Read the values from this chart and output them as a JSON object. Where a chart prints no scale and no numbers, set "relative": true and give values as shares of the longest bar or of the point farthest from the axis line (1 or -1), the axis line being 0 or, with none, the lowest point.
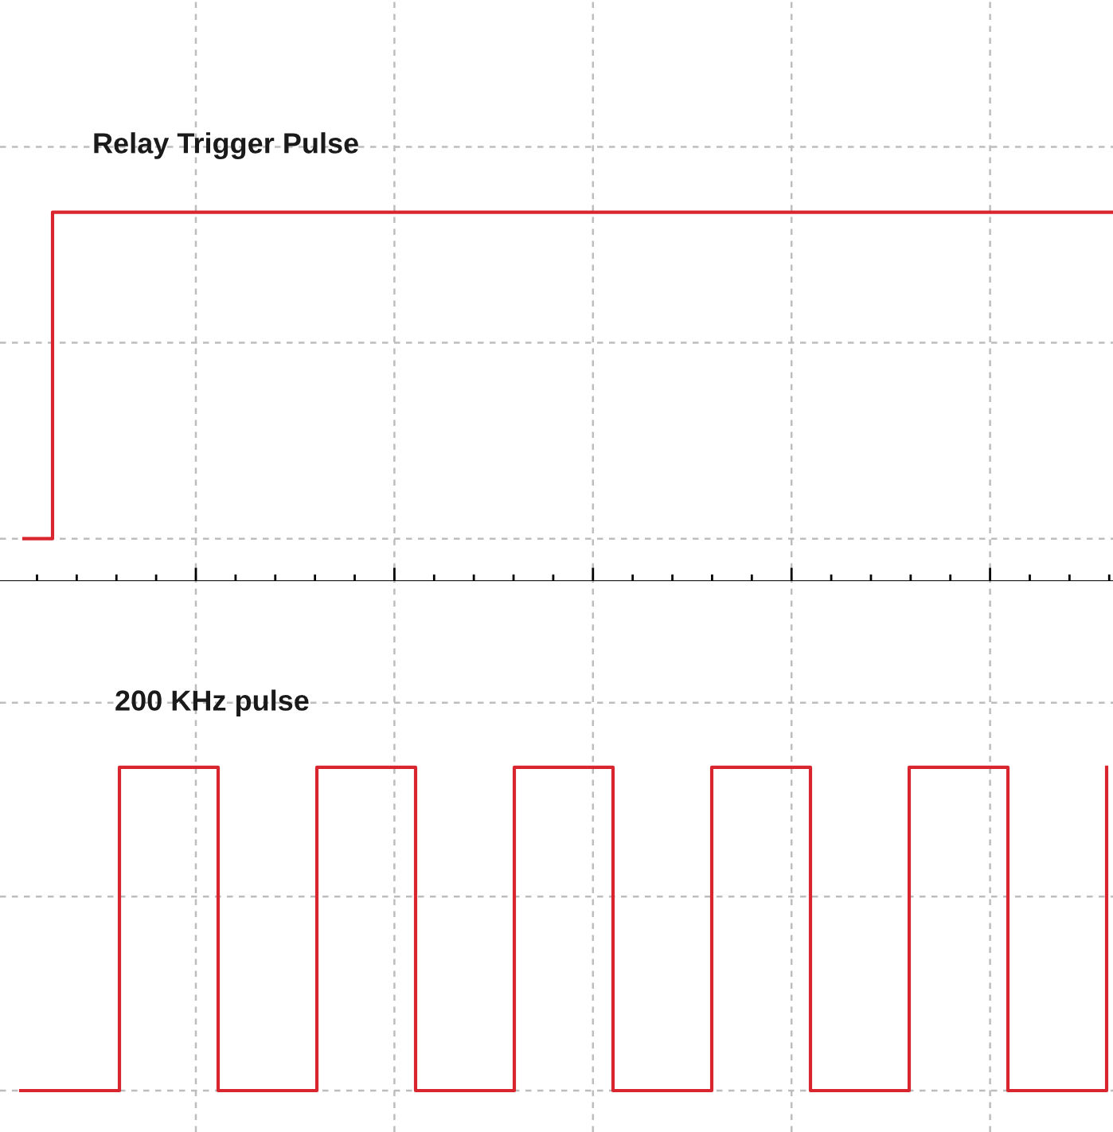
{
  "chart_data": [
    {
      "type": "step",
      "title": "Relay Trigger Pulse",
      "relative": true,
      "grid": true,
      "categories": [
        null,
        null,
        null,
        null,
        null,
        null,
        null,
        null,
        null,
        null,
        null,
        null,
        null,
        null,
        null,
        null,
        null,
        null,
        null,
        null,
        null,
        null,
        null,
        null,
        null,
        null,
        null,
        null,
        null,
        null,
        null,
        null,
        null,
        null,
        null,
        null,
        null,
        null,
        null
      ],
      "series": [
        {
          "color": "#d9262e",
          "values": [
            0,
            1,
            1,
            1,
            1,
            1,
            1,
            1,
            1,
            1,
            1,
            1,
            1,
            1,
            1,
            1,
            1,
            1,
            1,
            1,
            1,
            1,
            1,
            1,
            1,
            1,
            1,
            1,
            1,
            1,
            1,
            1,
            1,
            1,
            1,
            1,
            1,
            1,
            1
          ]
        }
      ]
    },
    {
      "type": "step",
      "title": "200 KHz pulse",
      "relative": true,
      "grid": true,
      "categories": [
        null,
        null,
        null,
        null,
        null,
        null,
        null,
        null,
        null,
        null,
        null,
        null
      ],
      "series": [
        {
          "color": "#d9262e",
          "values": [
            0,
            1,
            0,
            1,
            0,
            1,
            0,
            1,
            0,
            1,
            0,
            1
          ]
        }
      ]
    }
  ]
}
